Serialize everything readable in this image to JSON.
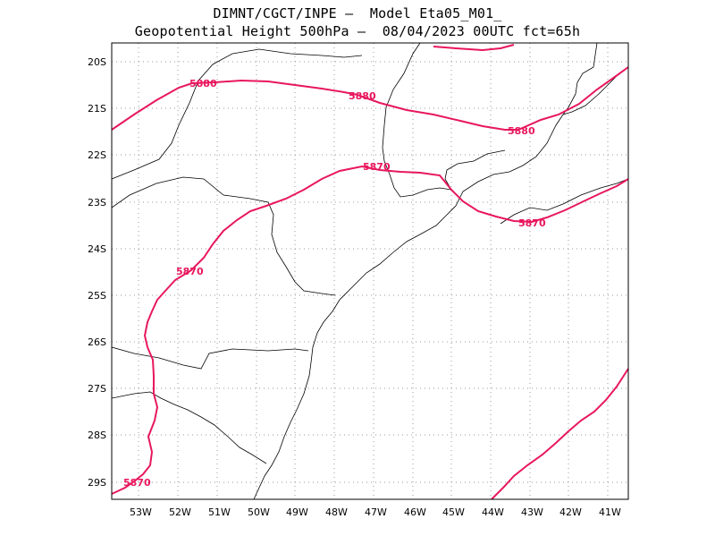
{
  "header": {
    "line1": "DIMNT/CGCT/INPE –  Model Eta05_M01_",
    "line2": "Geopotential Height 500hPa –  08/04/2023 00UTC fct=65h"
  },
  "axes": {
    "lat_labels": [
      "20S",
      "21S",
      "22S",
      "23S",
      "24S",
      "25S",
      "26S",
      "27S",
      "28S",
      "29S"
    ],
    "lon_labels": [
      "53W",
      "52W",
      "51W",
      "50W",
      "49W",
      "48W",
      "47W",
      "46W",
      "45W",
      "44W",
      "43W",
      "42W",
      "41W"
    ]
  },
  "contour_color": "#e8175d",
  "contours": [
    {
      "label": "5880"
    },
    {
      "label": "5880"
    },
    {
      "label": "5880"
    },
    {
      "label": "5870"
    },
    {
      "label": "5870"
    },
    {
      "label": "5870"
    },
    {
      "label": "5870"
    }
  ]
}
